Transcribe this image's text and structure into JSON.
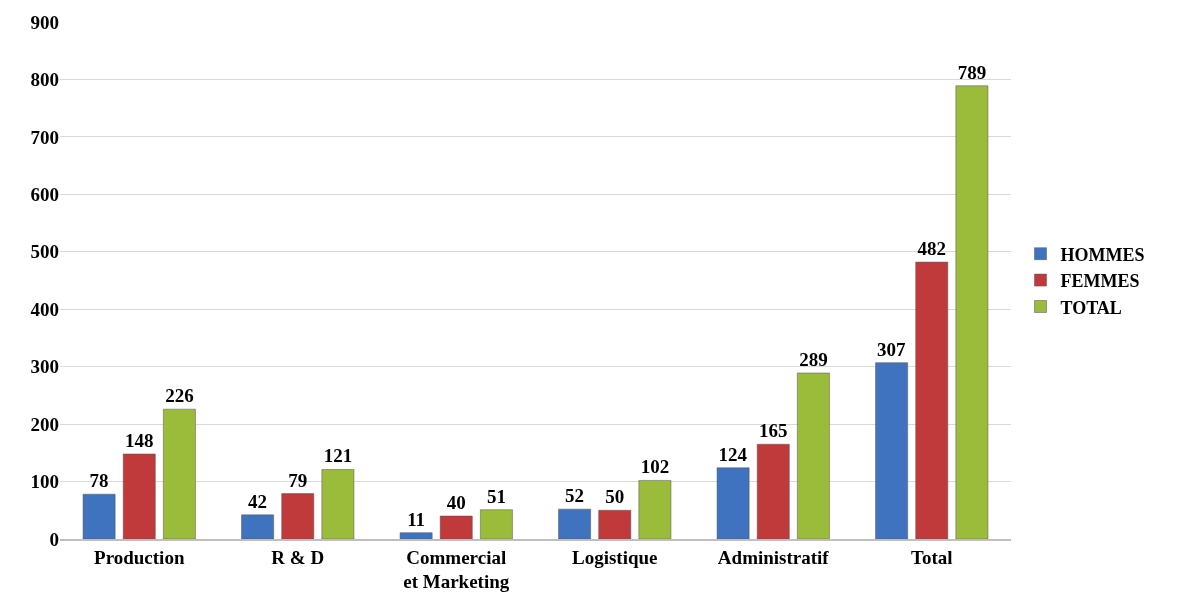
{
  "chart_data": {
    "type": "bar",
    "categories": [
      "Production",
      "R & D",
      "Commercial et Marketing",
      "Logistique",
      "Administratif",
      "Total"
    ],
    "series": [
      {
        "name": "HOMMES",
        "color": "#3f73bf",
        "values": [
          78,
          42,
          11,
          52,
          124,
          307
        ]
      },
      {
        "name": "FEMMES",
        "color": "#c0393b",
        "values": [
          148,
          79,
          40,
          50,
          165,
          482
        ]
      },
      {
        "name": "TOTAL",
        "color": "#9bbb3b",
        "values": [
          226,
          121,
          51,
          102,
          289,
          789
        ]
      }
    ],
    "ylim": [
      0,
      900
    ],
    "yticks": [
      0,
      100,
      200,
      300,
      400,
      500,
      600,
      700,
      800,
      900
    ],
    "grid": "y",
    "legend": "right",
    "data_labels": true
  }
}
